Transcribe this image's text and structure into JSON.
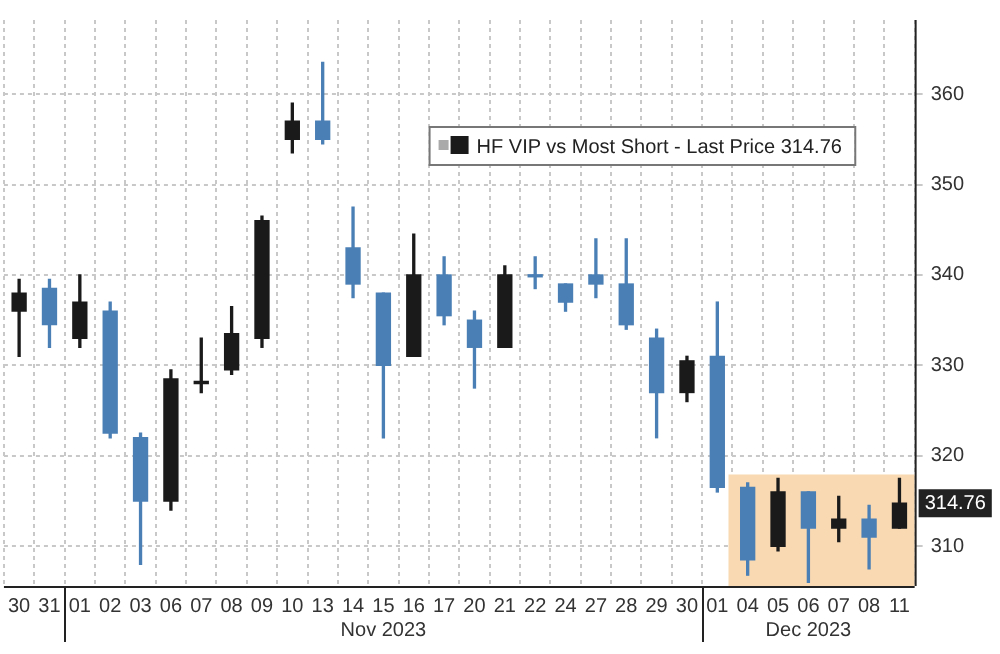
{
  "chart_data": {
    "type": "candlestick",
    "categories": [
      "30",
      "31",
      "01",
      "02",
      "03",
      "06",
      "07",
      "08",
      "09",
      "10",
      "13",
      "14",
      "15",
      "16",
      "17",
      "20",
      "21",
      "22",
      "24",
      "27",
      "28",
      "29",
      "30",
      "01",
      "04",
      "05",
      "06",
      "07",
      "08",
      "11"
    ],
    "series": [
      {
        "name": "HF VIP vs Most Short - Last Price 314.76",
        "color": "#1a1a1a",
        "colors": [
          "#1a1a1a",
          "#4a7fb5",
          "#1a1a1a",
          "#4a7fb5",
          "#4a7fb5",
          "#1a1a1a",
          "#1a1a1a",
          "#1a1a1a",
          "#1a1a1a",
          "#1a1a1a",
          "#4a7fb5",
          "#4a7fb5",
          "#4a7fb5",
          "#1a1a1a",
          "#4a7fb5",
          "#4a7fb5",
          "#1a1a1a",
          "#4a7fb5",
          "#4a7fb5",
          "#4a7fb5",
          "#4a7fb5",
          "#4a7fb5",
          "#1a1a1a",
          "#4a7fb5",
          "#4a7fb5",
          "#1a1a1a",
          "#4a7fb5",
          "#1a1a1a",
          "#4a7fb5",
          "#1a1a1a"
        ],
        "ohlc": [
          [
            336,
            339.5,
            331,
            338
          ],
          [
            338.5,
            339.5,
            332,
            334.5
          ],
          [
            333,
            340,
            332,
            337
          ],
          [
            336,
            337,
            322,
            322.5
          ],
          [
            322,
            322.5,
            308,
            315
          ],
          [
            315,
            329.5,
            314,
            328.5
          ],
          [
            328,
            333,
            327,
            328
          ],
          [
            329.5,
            336.5,
            329,
            333.5
          ],
          [
            333,
            346.5,
            332,
            346
          ],
          [
            355,
            359,
            353.5,
            357
          ],
          [
            357,
            363.5,
            354.5,
            355
          ],
          [
            343,
            347.5,
            337.5,
            339
          ],
          [
            338,
            338,
            322,
            330
          ],
          [
            331,
            344.5,
            331,
            340
          ],
          [
            340,
            342,
            334.5,
            335.5
          ],
          [
            335,
            336,
            327.5,
            332
          ],
          [
            332,
            341,
            332,
            340
          ],
          [
            340,
            342,
            338.5,
            339.8
          ],
          [
            339,
            339,
            336,
            337
          ],
          [
            340,
            344,
            337.5,
            339
          ],
          [
            339,
            344,
            334,
            334.5
          ],
          [
            333,
            334,
            322,
            327
          ],
          [
            327,
            331,
            326,
            330.5
          ],
          [
            331,
            337,
            316,
            316.5
          ],
          [
            316.5,
            317,
            306.8,
            308.5
          ],
          [
            310,
            317.5,
            309.5,
            316
          ],
          [
            316,
            316,
            306,
            312
          ],
          [
            312,
            315.5,
            310.5,
            313
          ],
          [
            313,
            314.5,
            307.5,
            311
          ],
          [
            312,
            317.5,
            312,
            314.76
          ]
        ]
      }
    ],
    "ylim": [
      305.6,
      368.2
    ],
    "yticks": [
      310,
      320,
      330,
      340,
      350,
      360
    ],
    "grid": true,
    "legend": "top",
    "bands": [
      {
        "axis": "x",
        "from": "04",
        "to": "11",
        "color": "#f8d9b2"
      }
    ],
    "annotations": [
      "Nov 2023",
      "Dec 2023",
      {
        "text": "314.76",
        "y": 314.76
      }
    ]
  }
}
